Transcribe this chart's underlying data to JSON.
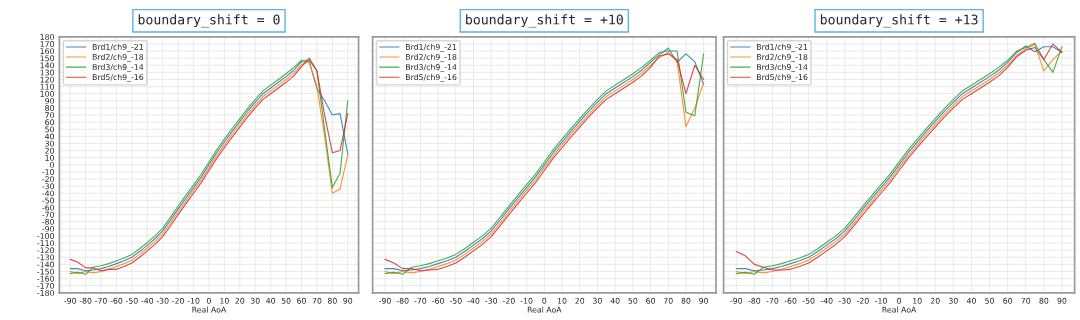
{
  "chart_data": [
    {
      "type": "line",
      "title": "boundary_shift = 0",
      "xlabel": "Real AoA",
      "x": [
        -90,
        -85,
        -80,
        -75,
        -70,
        -65,
        -60,
        -55,
        -50,
        -45,
        -40,
        -35,
        -30,
        -25,
        -20,
        -15,
        -10,
        -5,
        0,
        5,
        10,
        15,
        20,
        25,
        30,
        35,
        40,
        45,
        50,
        55,
        60,
        65,
        70,
        75,
        80,
        85,
        90
      ],
      "xlim": [
        -97,
        97
      ],
      "xticks": [
        -90,
        -80,
        -70,
        -60,
        -50,
        -40,
        -30,
        -20,
        -10,
        0,
        10,
        20,
        30,
        40,
        50,
        60,
        70,
        80,
        90
      ],
      "ylim": [
        -180,
        180
      ],
      "yticks": [
        -180,
        -170,
        -160,
        -150,
        -140,
        -130,
        -120,
        -110,
        -100,
        -90,
        -80,
        -70,
        -60,
        -50,
        -40,
        -30,
        -20,
        -10,
        0,
        10,
        20,
        30,
        40,
        50,
        60,
        70,
        80,
        90,
        100,
        110,
        120,
        130,
        140,
        150,
        160,
        170,
        180
      ],
      "grid": true,
      "legend": "top left",
      "series": [
        {
          "name": "Brd1/ch9_-21",
          "color": "#1f77b4",
          "values": [
            -146,
            -146,
            -149,
            -148,
            -146,
            -143,
            -139,
            -135,
            -130,
            -122,
            -113,
            -104,
            -93,
            -78,
            -62,
            -47,
            -32,
            -17,
            0,
            17,
            32,
            47,
            61,
            75,
            88,
            100,
            108,
            116,
            124,
            133,
            145,
            145,
            107,
            90,
            70,
            72,
            15
          ]
        },
        {
          "name": "Brd2/ch9_-18",
          "color": "#ff7f0e",
          "values": [
            -150,
            -153,
            -150,
            -152,
            -150,
            -147,
            -143,
            -139,
            -134,
            -126,
            -117,
            -108,
            -97,
            -82,
            -66,
            -51,
            -36,
            -21,
            -4,
            13,
            28,
            43,
            57,
            71,
            84,
            96,
            104,
            112,
            120,
            129,
            141,
            145,
            110,
            40,
            -40,
            -34,
            14
          ]
        },
        {
          "name": "Brd3/ch9_-14",
          "color": "#2ca02c",
          "values": [
            -153,
            -151,
            -154,
            -144,
            -142,
            -139,
            -135,
            -131,
            -126,
            -118,
            -109,
            -100,
            -89,
            -74,
            -58,
            -43,
            -28,
            -13,
            4,
            21,
            36,
            51,
            65,
            79,
            92,
            104,
            112,
            120,
            128,
            137,
            147,
            147,
            132,
            50,
            -32,
            -12,
            90
          ]
        },
        {
          "name": "Brd5/ch9_-16",
          "color": "#d62728",
          "values": [
            -133,
            -137,
            -145,
            -145,
            -149,
            -147,
            -147,
            -143,
            -138,
            -130,
            -121,
            -112,
            -101,
            -86,
            -70,
            -55,
            -40,
            -25,
            -8,
            9,
            24,
            39,
            53,
            67,
            80,
            92,
            100,
            108,
            116,
            125,
            138,
            150,
            132,
            70,
            17,
            20,
            72
          ]
        }
      ]
    },
    {
      "type": "line",
      "title": "boundary_shift = +10",
      "xlabel": "Real AoA",
      "tick_labels": "x",
      "x": [
        -90,
        -85,
        -80,
        -75,
        -70,
        -65,
        -60,
        -55,
        -50,
        -45,
        -40,
        -35,
        -30,
        -25,
        -20,
        -15,
        -10,
        -5,
        0,
        5,
        10,
        15,
        20,
        25,
        30,
        35,
        40,
        45,
        50,
        55,
        60,
        65,
        70,
        75,
        80,
        85,
        90
      ],
      "xlim": [
        -97,
        97
      ],
      "xticks": [
        -90,
        -80,
        -70,
        -60,
        -50,
        -40,
        -30,
        -20,
        -10,
        0,
        10,
        20,
        30,
        40,
        50,
        60,
        70,
        80,
        90
      ],
      "ylim": [
        -180,
        180
      ],
      "yticks": [
        -180,
        -170,
        -160,
        -150,
        -140,
        -130,
        -120,
        -110,
        -100,
        -90,
        -80,
        -70,
        -60,
        -50,
        -40,
        -30,
        -20,
        -10,
        0,
        10,
        20,
        30,
        40,
        50,
        60,
        70,
        80,
        90,
        100,
        110,
        120,
        130,
        140,
        150,
        160,
        170,
        180
      ],
      "grid": true,
      "legend": "top left",
      "series": [
        {
          "name": "Brd1/ch9_-21",
          "color": "#1f77b4",
          "values": [
            -146,
            -146,
            -149,
            -148,
            -146,
            -143,
            -139,
            -135,
            -130,
            -122,
            -113,
            -104,
            -93,
            -78,
            -62,
            -47,
            -32,
            -17,
            0,
            17,
            32,
            47,
            61,
            75,
            88,
            100,
            108,
            116,
            124,
            133,
            144,
            155,
            164,
            144,
            156,
            145,
            113
          ]
        },
        {
          "name": "Brd2/ch9_-18",
          "color": "#ff7f0e",
          "values": [
            -150,
            -153,
            -150,
            -152,
            -150,
            -147,
            -143,
            -139,
            -134,
            -126,
            -117,
            -108,
            -97,
            -82,
            -66,
            -51,
            -36,
            -21,
            -4,
            13,
            28,
            43,
            57,
            71,
            84,
            96,
            104,
            112,
            120,
            129,
            140,
            151,
            158,
            145,
            54,
            80,
            115
          ]
        },
        {
          "name": "Brd3/ch9_-14",
          "color": "#2ca02c",
          "values": [
            -153,
            -151,
            -154,
            -144,
            -142,
            -139,
            -135,
            -131,
            -126,
            -118,
            -109,
            -100,
            -89,
            -74,
            -58,
            -43,
            -28,
            -13,
            4,
            21,
            36,
            51,
            65,
            79,
            92,
            104,
            112,
            120,
            128,
            137,
            147,
            158,
            160,
            160,
            74,
            69,
            156
          ]
        },
        {
          "name": "Brd5/ch9_-16",
          "color": "#d62728",
          "values": [
            -133,
            -138,
            -146,
            -146,
            -149,
            -148,
            -147,
            -143,
            -138,
            -130,
            -121,
            -112,
            -101,
            -86,
            -70,
            -55,
            -40,
            -25,
            -8,
            9,
            24,
            39,
            53,
            67,
            80,
            92,
            100,
            108,
            116,
            125,
            137,
            153,
            156,
            148,
            100,
            140,
            120
          ]
        }
      ]
    },
    {
      "type": "line",
      "title": "boundary_shift = +13",
      "xlabel": "Real AoA",
      "tick_labels": "x",
      "x": [
        -90,
        -85,
        -80,
        -75,
        -70,
        -65,
        -60,
        -55,
        -50,
        -45,
        -40,
        -35,
        -30,
        -25,
        -20,
        -15,
        -10,
        -5,
        0,
        5,
        10,
        15,
        20,
        25,
        30,
        35,
        40,
        45,
        50,
        55,
        60,
        65,
        70,
        75,
        80,
        85,
        90
      ],
      "xlim": [
        -97,
        97
      ],
      "xticks": [
        -90,
        -80,
        -70,
        -60,
        -50,
        -40,
        -30,
        -20,
        -10,
        0,
        10,
        20,
        30,
        40,
        50,
        60,
        70,
        80,
        90
      ],
      "ylim": [
        -180,
        180
      ],
      "yticks": [
        -180,
        -170,
        -160,
        -150,
        -140,
        -130,
        -120,
        -110,
        -100,
        -90,
        -80,
        -70,
        -60,
        -50,
        -40,
        -30,
        -20,
        -10,
        0,
        10,
        20,
        30,
        40,
        50,
        60,
        70,
        80,
        90,
        100,
        110,
        120,
        130,
        140,
        150,
        160,
        170,
        180
      ],
      "grid": true,
      "legend": "top left",
      "series": [
        {
          "name": "Brd1/ch9_-21",
          "color": "#1f77b4",
          "values": [
            -146,
            -146,
            -149,
            -148,
            -146,
            -143,
            -139,
            -135,
            -130,
            -122,
            -113,
            -104,
            -93,
            -78,
            -62,
            -47,
            -32,
            -17,
            0,
            17,
            32,
            47,
            61,
            75,
            88,
            100,
            108,
            116,
            124,
            133,
            144,
            158,
            167,
            159,
            166,
            166,
            158
          ]
        },
        {
          "name": "Brd2/ch9_-18",
          "color": "#ff7f0e",
          "values": [
            -150,
            -153,
            -150,
            -152,
            -150,
            -147,
            -143,
            -139,
            -134,
            -126,
            -117,
            -108,
            -97,
            -82,
            -66,
            -51,
            -36,
            -21,
            -4,
            13,
            28,
            43,
            57,
            71,
            84,
            96,
            104,
            112,
            120,
            129,
            140,
            154,
            163,
            169,
            132,
            148,
            160
          ]
        },
        {
          "name": "Brd3/ch9_-14",
          "color": "#2ca02c",
          "values": [
            -153,
            -151,
            -154,
            -144,
            -142,
            -139,
            -135,
            -131,
            -126,
            -118,
            -109,
            -100,
            -89,
            -74,
            -58,
            -43,
            -28,
            -13,
            4,
            21,
            36,
            51,
            65,
            79,
            92,
            104,
            112,
            120,
            128,
            137,
            147,
            160,
            165,
            171,
            148,
            130,
            166
          ]
        },
        {
          "name": "Brd5/ch9_-16",
          "color": "#d62728",
          "values": [
            -122,
            -128,
            -140,
            -144,
            -148,
            -148,
            -147,
            -143,
            -138,
            -130,
            -121,
            -112,
            -101,
            -86,
            -70,
            -55,
            -40,
            -25,
            -8,
            9,
            24,
            39,
            53,
            67,
            80,
            92,
            100,
            108,
            116,
            125,
            137,
            152,
            161,
            165,
            148,
            170,
            158
          ]
        }
      ]
    }
  ]
}
